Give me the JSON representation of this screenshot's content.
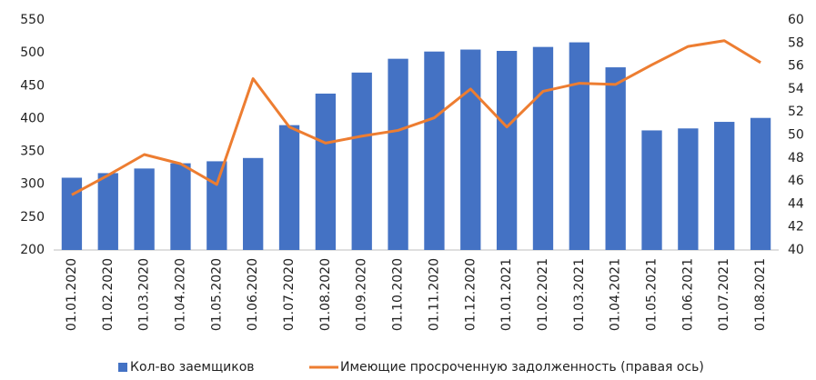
{
  "chart_data": {
    "type": "bar-line",
    "categories": [
      "01.01.2020",
      "01.02.2020",
      "01.03.2020",
      "01.04.2020",
      "01.05.2020",
      "01.06.2020",
      "01.07.2020",
      "01.08.2020",
      "01.09.2020",
      "01.10.2020",
      "01.11.2020",
      "01.12.2020",
      "01.01.2021",
      "01.02.2021",
      "01.03.2021",
      "01.04.2021",
      "01.05.2021",
      "01.06.2021",
      "01.07.2021",
      "01.08.2021"
    ],
    "series": [
      {
        "name": "Кол-во заемщиков",
        "type": "bar",
        "color": "#4472c4",
        "values": [
          310,
          317,
          324,
          332,
          335,
          340,
          390,
          438,
          470,
          491,
          502,
          505,
          503,
          509,
          516,
          478,
          382,
          385,
          395,
          401
        ]
      },
      {
        "name": "Имеющие просроченную задолженность (правая ось)",
        "type": "line",
        "axis": "y2",
        "color": "#ed7d31",
        "values": [
          44.8,
          46.5,
          48.3,
          47.5,
          45.7,
          54.9,
          50.7,
          49.3,
          49.9,
          50.4,
          51.5,
          54.0,
          50.7,
          53.8,
          54.5,
          54.4,
          56.1,
          57.7,
          58.2,
          56.3
        ]
      }
    ],
    "ylim": [
      200,
      550
    ],
    "yticks": [
      200,
      250,
      300,
      350,
      400,
      450,
      500,
      550
    ],
    "y2lim": [
      40,
      60
    ],
    "y2ticks": [
      40,
      42,
      44,
      46,
      48,
      50,
      52,
      54,
      56,
      58,
      60
    ],
    "legend": "bottom"
  }
}
